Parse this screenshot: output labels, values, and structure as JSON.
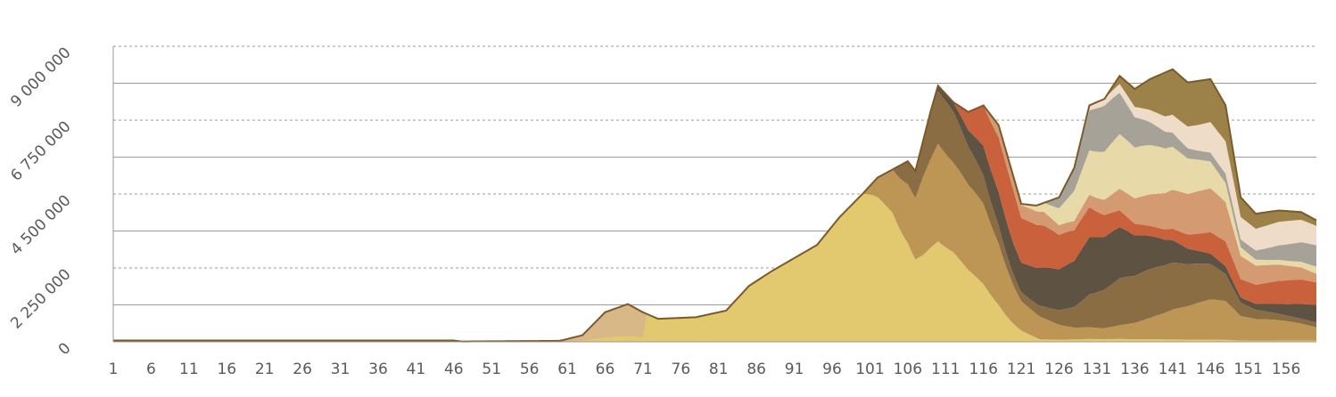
{
  "chart_data": {
    "type": "area",
    "stacked": true,
    "title": "",
    "xlabel": "",
    "ylabel": "",
    "ylim": [
      0,
      9000000
    ],
    "x_range": [
      1,
      160
    ],
    "x_ticks": [
      "1",
      "6",
      "11",
      "16",
      "21",
      "26",
      "31",
      "36",
      "41",
      "46",
      "51",
      "56",
      "61",
      "66",
      "71",
      "76",
      "81",
      "86",
      "91",
      "96",
      "101",
      "106",
      "111",
      "116",
      "121",
      "126",
      "131",
      "136",
      "141",
      "146",
      "151",
      "156"
    ],
    "y_ticks": [
      {
        "value": 0,
        "label": "0"
      },
      {
        "value": 2250000,
        "label": "2 250 000"
      },
      {
        "value": 4500000,
        "label": "4 500 000"
      },
      {
        "value": 6750000,
        "label": "6 750 000"
      },
      {
        "value": 9000000,
        "label": "9 000 000"
      }
    ],
    "gridlines": {
      "solid": [
        1125000,
        3375000,
        5625000,
        7875000
      ],
      "dashed": [
        2250000,
        4500000,
        6750000,
        9000000
      ]
    },
    "legend": "none",
    "series_colors": [
      "#e2c970",
      "#bd9554",
      "#8a6d42",
      "#5e5242",
      "#c9613c",
      "#d49a72",
      "#e8d9a8",
      "#a6a298",
      "#efdcc8",
      "#9c8148"
    ],
    "peak_color": "#d9b888",
    "total_keypoints": [
      [
        1,
        40000
      ],
      [
        46,
        40000
      ],
      [
        47,
        10000
      ],
      [
        60,
        30000
      ],
      [
        63,
        200000
      ],
      [
        66,
        900000
      ],
      [
        69,
        1150000
      ],
      [
        71,
        900000
      ],
      [
        73,
        700000
      ],
      [
        78,
        750000
      ],
      [
        82,
        950000
      ],
      [
        85,
        1700000
      ],
      [
        88,
        2150000
      ],
      [
        91,
        2550000
      ],
      [
        94,
        2950000
      ],
      [
        97,
        3800000
      ],
      [
        100,
        4500000
      ],
      [
        102,
        5000000
      ],
      [
        104,
        5250000
      ],
      [
        106,
        5500000
      ],
      [
        107,
        5200000
      ],
      [
        109,
        7000000
      ],
      [
        110,
        7800000
      ],
      [
        112,
        7300000
      ],
      [
        114,
        7000000
      ],
      [
        116,
        7200000
      ],
      [
        118,
        6600000
      ],
      [
        121,
        4200000
      ],
      [
        123,
        4150000
      ],
      [
        126,
        4400000
      ],
      [
        128,
        5300000
      ],
      [
        130,
        7200000
      ],
      [
        132,
        7400000
      ],
      [
        134,
        8100000
      ],
      [
        136,
        7700000
      ],
      [
        138,
        8000000
      ],
      [
        141,
        8300000
      ],
      [
        143,
        7900000
      ],
      [
        146,
        8000000
      ],
      [
        148,
        7200000
      ],
      [
        150,
        4400000
      ],
      [
        152,
        3900000
      ],
      [
        155,
        4000000
      ],
      [
        158,
        3950000
      ],
      [
        160,
        3700000
      ]
    ]
  }
}
